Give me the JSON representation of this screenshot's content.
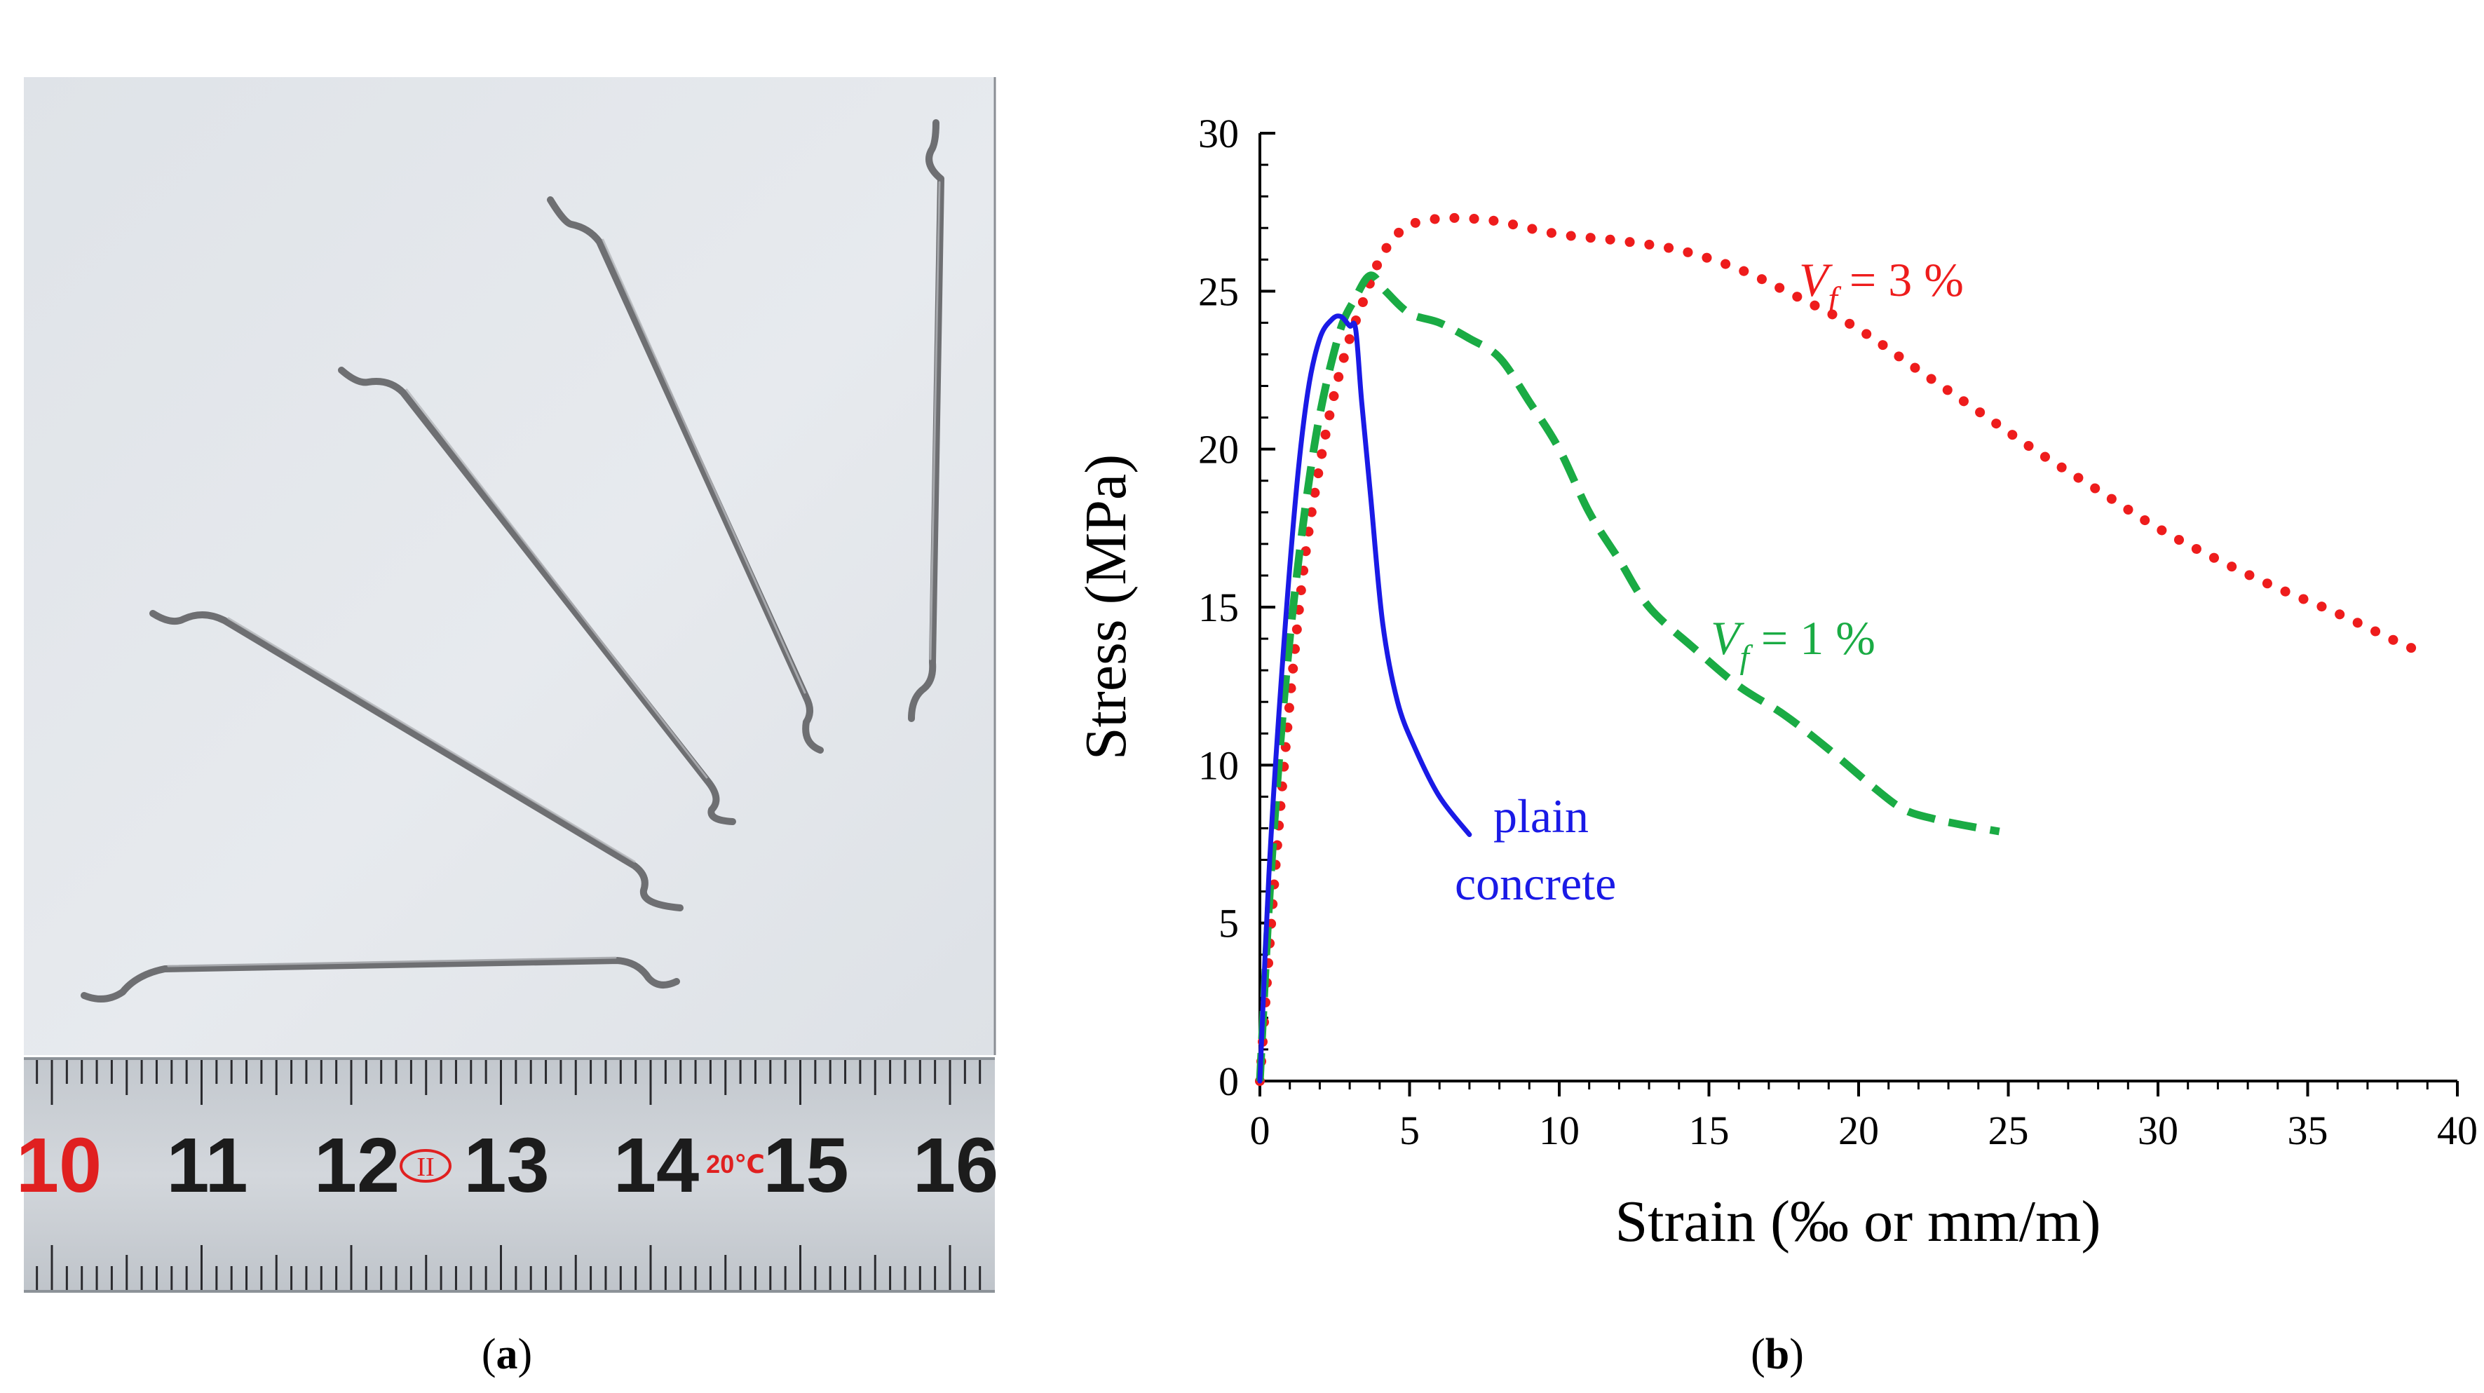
{
  "panels": {
    "a": {
      "label_open": "(",
      "label_letter": "a",
      "label_close": ")"
    },
    "b": {
      "label_open": "(",
      "label_letter": "b",
      "label_close": ")"
    }
  },
  "photo": {
    "ruler_numbers": [
      "10",
      "11",
      "12",
      "13",
      "14",
      "15",
      "16"
    ],
    "ruler_mark": "II",
    "ruler_temp": "20℃",
    "colors": {
      "background": "#e4e8ec",
      "ruler": "#cbd0d6",
      "fiber": "#6e6f72",
      "red_text": "#e02020"
    }
  },
  "chart_data": {
    "type": "line",
    "xlabel": "Strain (‰ or mm/m)",
    "ylabel": "Stress (MPa)",
    "xlim": [
      0,
      40
    ],
    "ylim": [
      0,
      30
    ],
    "xticks": [
      0,
      5,
      10,
      15,
      20,
      25,
      30,
      35,
      40
    ],
    "yticks": [
      0,
      5,
      10,
      15,
      20,
      25,
      30
    ],
    "grid": false,
    "series": [
      {
        "name": "plain concrete",
        "label_line1": "plain",
        "label_line2": "concrete",
        "color": "#1a1ae6",
        "style": "solid",
        "x": [
          0,
          0.3,
          0.7,
          1.2,
          1.6,
          2.0,
          2.4,
          2.7,
          3.0,
          3.2,
          3.4,
          3.7,
          4.1,
          4.6,
          5.2,
          6.0,
          7.0
        ],
        "y": [
          0,
          6.5,
          12.5,
          18.5,
          21.8,
          23.5,
          24.1,
          24.2,
          23.9,
          23.8,
          21.5,
          18.5,
          14.5,
          12.0,
          10.5,
          9.0,
          7.8
        ]
      },
      {
        "name": "Vf = 1 %",
        "label_symbol": "V",
        "label_subscript": "f",
        "label_rest": " = 1 %",
        "color": "#1aab44",
        "style": "dashed",
        "x": [
          0,
          0.4,
          1.0,
          1.8,
          2.6,
          3.2,
          3.7,
          4.2,
          5.0,
          6.0,
          7.0,
          8.0,
          9.0,
          10.0,
          11.0,
          12.0,
          13.0,
          14.5,
          16.0,
          17.5,
          19.0,
          20.5,
          21.5,
          22.5,
          23.5,
          24.7
        ],
        "y": [
          0,
          7.0,
          14.0,
          20.0,
          23.5,
          24.8,
          25.5,
          25.0,
          24.3,
          24.0,
          23.5,
          22.9,
          21.5,
          20.0,
          18.0,
          16.5,
          15.0,
          13.7,
          12.5,
          11.6,
          10.5,
          9.3,
          8.6,
          8.3,
          8.1,
          7.9
        ]
      },
      {
        "name": "Vf = 3 %",
        "label_symbol": "V",
        "label_subscript": "f",
        "label_rest": " = 3 %",
        "color": "#ee1c1c",
        "style": "dotted",
        "x": [
          0,
          0.5,
          1.0,
          1.5,
          2.0,
          2.5,
          3.0,
          3.5,
          4.0,
          4.5,
          5.0,
          6.0,
          7.0,
          8.0,
          10.0,
          12.0,
          14.0,
          16.0,
          18.0,
          20.0,
          22.0,
          24.0,
          26.0,
          28.0,
          30.0,
          32.0,
          34.0,
          36.0,
          38.0,
          39.0
        ],
        "y": [
          0,
          6.5,
          12.0,
          16.5,
          19.5,
          21.8,
          23.5,
          24.8,
          26.0,
          26.7,
          27.1,
          27.3,
          27.3,
          27.2,
          26.8,
          26.6,
          26.3,
          25.7,
          24.8,
          23.8,
          22.5,
          21.2,
          19.9,
          18.7,
          17.5,
          16.5,
          15.6,
          14.8,
          13.9,
          13.5
        ]
      }
    ]
  }
}
